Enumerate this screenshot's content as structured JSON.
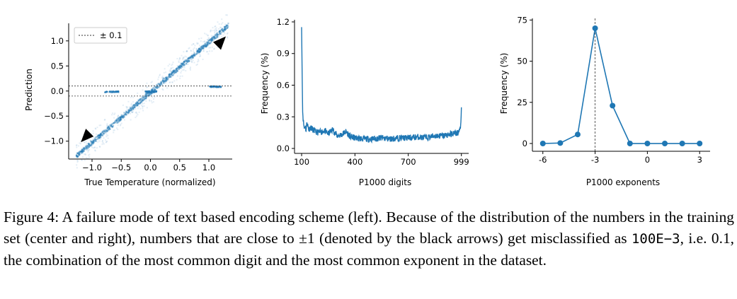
{
  "chart_data": [
    {
      "type": "scatter",
      "xlabel": "True Temperature (normalized)",
      "ylabel": "Prediction",
      "xticks": [
        "−1.0",
        "−0.5",
        "0.0",
        "0.5",
        "1.0"
      ],
      "xtick_values": [
        -1.0,
        -0.5,
        0.0,
        0.5,
        1.0
      ],
      "yticks": [
        "1.0",
        "0.5",
        "0.0",
        "−0.5",
        "−1.0"
      ],
      "ytick_values": [
        1.0,
        0.5,
        0.0,
        -0.5,
        -1.0
      ],
      "xlim": [
        -1.4,
        1.4
      ],
      "ylim": [
        -1.3,
        1.35
      ],
      "legend": {
        "label": "± 0.1",
        "placement": "top-left",
        "style": "dotted"
      },
      "reference_lines": [
        0.1,
        -0.1
      ],
      "diagonal_band": {
        "x": [
          -1.28,
          1.32
        ],
        "y": [
          -1.28,
          1.32
        ]
      },
      "misclassified_clusters": [
        {
          "x": [
            -0.8,
            -0.55
          ],
          "y": 0.0
        },
        {
          "x": [
            1.0,
            1.2
          ],
          "y": 0.1
        }
      ],
      "arrows": [
        {
          "x": 1.17,
          "y": 0.92,
          "direction": "down-left"
        },
        {
          "x": -1.07,
          "y": -0.85,
          "direction": "up-right"
        }
      ],
      "color": "#1f77b4"
    },
    {
      "type": "line",
      "xlabel": "P1000 digits",
      "ylabel": "Frequency (%)",
      "xticks": [
        "100",
        "400",
        "700",
        "999"
      ],
      "xtick_values": [
        100,
        400,
        700,
        999
      ],
      "yticks": [
        "1.2",
        "0.9",
        "0.6",
        "0.3",
        "0.0"
      ],
      "ytick_values": [
        1.2,
        0.9,
        0.6,
        0.3,
        0.0
      ],
      "xlim": [
        60,
        1040
      ],
      "ylim": [
        -0.02,
        1.22
      ],
      "x": [
        100,
        103,
        106,
        110,
        115,
        120,
        125,
        130,
        140,
        150,
        175,
        200,
        225,
        250,
        275,
        300,
        325,
        350,
        375,
        400,
        450,
        500,
        550,
        600,
        650,
        700,
        750,
        800,
        850,
        900,
        950,
        980,
        990,
        995,
        999
      ],
      "values": [
        1.15,
        0.7,
        0.35,
        0.25,
        0.19,
        0.22,
        0.17,
        0.25,
        0.18,
        0.2,
        0.16,
        0.15,
        0.17,
        0.14,
        0.18,
        0.12,
        0.13,
        0.16,
        0.11,
        0.1,
        0.09,
        0.09,
        0.1,
        0.09,
        0.1,
        0.1,
        0.11,
        0.1,
        0.12,
        0.12,
        0.14,
        0.15,
        0.17,
        0.22,
        0.39
      ],
      "color": "#1f77b4"
    },
    {
      "type": "line",
      "xlabel": "P1000 exponents",
      "ylabel": "Frequency (%)",
      "xticks": [
        "-6",
        "-3",
        "0",
        "3"
      ],
      "xtick_values": [
        -6,
        -3,
        0,
        3
      ],
      "yticks": [
        "75",
        "50",
        "25",
        "0"
      ],
      "ytick_values": [
        75,
        50,
        25,
        0
      ],
      "xlim": [
        -6.6,
        3.6
      ],
      "ylim": [
        -3,
        76
      ],
      "x": [
        -6,
        -5,
        -4,
        -3,
        -2,
        -1,
        0,
        1,
        2,
        3
      ],
      "values": [
        0,
        0.3,
        5.5,
        70,
        23,
        0,
        0,
        0,
        0,
        0
      ],
      "vline_x": -3,
      "color": "#1f77b4"
    }
  ],
  "caption": {
    "part1": "Figure 4: A failure mode of text based encoding scheme (left). Because of the distribution of the numbers in the training set (center and right), numbers that are close to ±1 (denoted by the black arrows) get misclassified as ",
    "code": "100E−3",
    "part2": ", i.e. 0.1, the combination of the most common digit and the most common exponent in the dataset."
  }
}
